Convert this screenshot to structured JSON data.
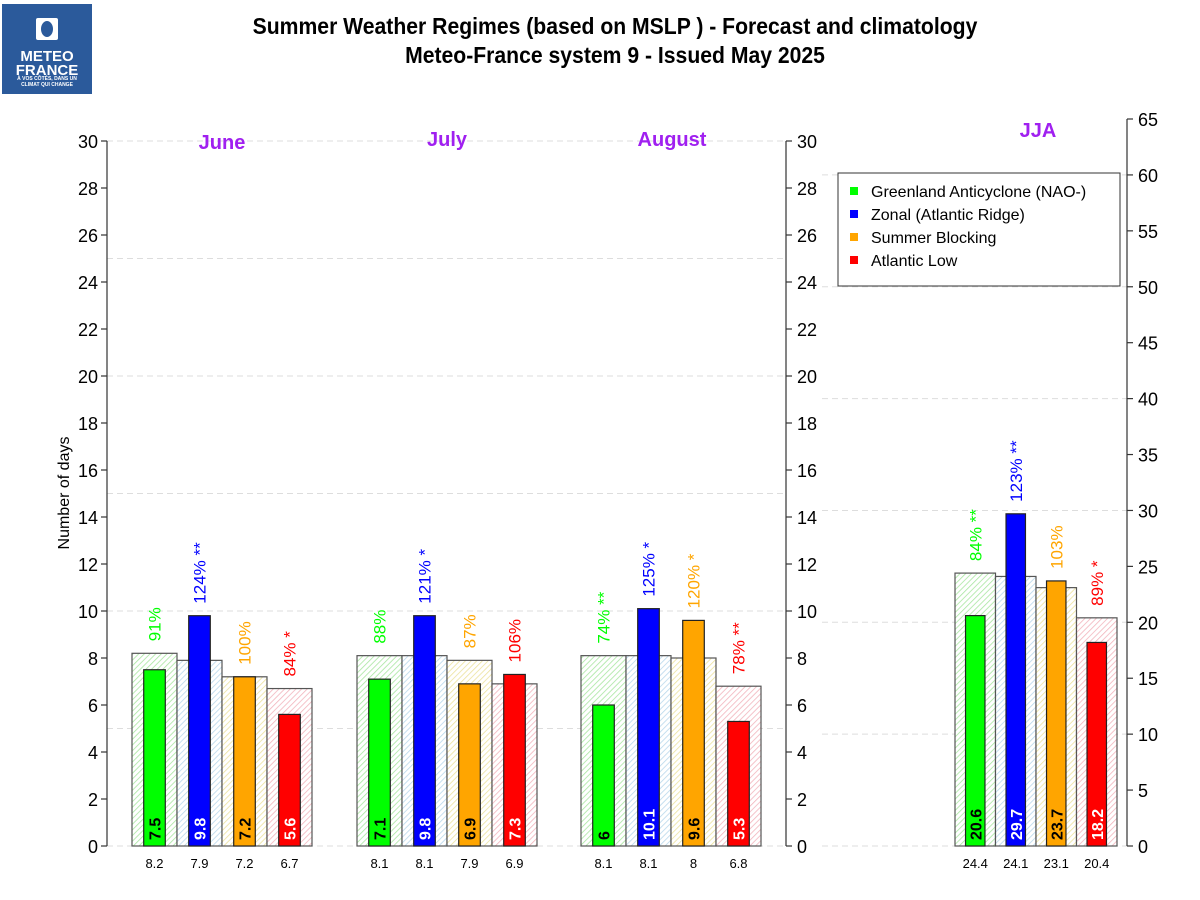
{
  "logo": {
    "line1": "METEO",
    "line2": "FRANCE",
    "tagline1": "À VOS CÔTÉS, DANS UN",
    "tagline2": "CLIMAT QUI CHANGE"
  },
  "title": {
    "line1": "Summer Weather Regimes (based on MSLP )  -  Forecast and climatology",
    "line2": "Meteo-France system 9   -   Issued May 2025"
  },
  "colors": {
    "month_label": "#a020f0",
    "greenland": "#00ff00",
    "zonal": "#0000ff",
    "blocking": "#ffa500",
    "atlantic_low": "#ff0000",
    "hatch_greenland": "#a8e6a0",
    "hatch_zonal": "#b8d8ec",
    "hatch_blocking": "#ece29c",
    "hatch_atlantic_low": "#f2b4bc"
  },
  "chart_data": {
    "type": "bar",
    "title": "Summer Weather Regimes (based on MSLP )  -  Forecast and climatology",
    "subtitle": "Meteo-France system 9   -   Issued May 2025",
    "ylabel": "Number of days",
    "ylim_monthly": [
      0,
      30
    ],
    "yticks_monthly": [
      "0",
      "2",
      "4",
      "6",
      "8",
      "10",
      "12",
      "14",
      "16",
      "18",
      "20",
      "22",
      "24",
      "26",
      "28",
      "30"
    ],
    "ylim_season": [
      0,
      65
    ],
    "yticks_season": [
      "0",
      "5",
      "10",
      "15",
      "20",
      "25",
      "30",
      "35",
      "40",
      "45",
      "50",
      "55",
      "60",
      "65"
    ],
    "grid": true,
    "legend_position": "top-right",
    "legend": [
      "Greenland Anticyclone (NAO-)",
      "Zonal (Atlantic Ridge)",
      "Summer Blocking",
      "Atlantic Low"
    ],
    "categories": [
      "June",
      "July",
      "August",
      "JJA"
    ],
    "series": [
      {
        "name": "Greenland Anticyclone (NAO-)",
        "forecast": [
          7.5,
          7.1,
          6,
          20.6
        ],
        "forecast_labels": [
          "7.5",
          "7.1",
          "6",
          "20.6"
        ],
        "climatology": [
          8.2,
          8.1,
          8.1,
          24.4
        ],
        "climatology_labels": [
          "8.2",
          "8.1",
          "8.1",
          "24.4"
        ],
        "percent_labels": [
          "91%",
          "88%",
          "74% **",
          "84% **"
        ]
      },
      {
        "name": "Zonal (Atlantic Ridge)",
        "forecast": [
          9.8,
          9.8,
          10.1,
          29.7
        ],
        "forecast_labels": [
          "9.8",
          "9.8",
          "10.1",
          "29.7"
        ],
        "climatology": [
          7.9,
          8.1,
          8.1,
          24.1
        ],
        "climatology_labels": [
          "7.9",
          "8.1",
          "8.1",
          "24.1"
        ],
        "percent_labels": [
          "124% **",
          "121% *",
          "125% *",
          "123% **"
        ]
      },
      {
        "name": "Summer Blocking",
        "forecast": [
          7.2,
          6.9,
          9.6,
          23.7
        ],
        "forecast_labels": [
          "7.2",
          "6.9",
          "9.6",
          "23.7"
        ],
        "climatology": [
          7.2,
          7.9,
          8,
          23.1
        ],
        "climatology_labels": [
          "7.2",
          "7.9",
          "8",
          "23.1"
        ],
        "percent_labels": [
          "100%",
          "87%",
          "120% *",
          "103%"
        ]
      },
      {
        "name": "Atlantic Low",
        "forecast": [
          5.6,
          7.3,
          5.3,
          18.2
        ],
        "forecast_labels": [
          "5.6",
          "7.3",
          "5.3",
          "18.2"
        ],
        "climatology": [
          6.7,
          6.9,
          6.8,
          20.4
        ],
        "climatology_labels": [
          "6.7",
          "6.9",
          "6.8",
          "20.4"
        ],
        "percent_labels": [
          "84% *",
          "106%",
          "78% **",
          "89% *"
        ]
      }
    ]
  }
}
